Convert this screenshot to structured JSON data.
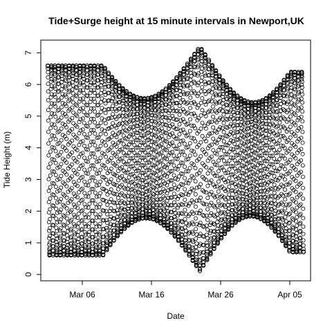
{
  "chart_data": {
    "type": "scatter",
    "title": "Tide+Surge height at 15 minute intervals in Newport,UK",
    "xlabel": "Date",
    "ylabel": "Tide Height (m)",
    "x_start": "2013-03-01",
    "x_end": "2013-04-07",
    "xlim": [
      "2013-02-28",
      "2013-04-08"
    ],
    "ylim": [
      -0.2,
      7.4
    ],
    "x_ticks": [
      {
        "date": "2013-03-06",
        "label": "Mar 06"
      },
      {
        "date": "2013-03-16",
        "label": "Mar 16"
      },
      {
        "date": "2013-03-26",
        "label": "Mar 26"
      },
      {
        "date": "2013-04-05",
        "label": "Apr 05"
      }
    ],
    "y_ticks": [
      0,
      1,
      2,
      3,
      4,
      5,
      6,
      7
    ],
    "marker": "open-circle",
    "grid": false,
    "legend": "none",
    "series_summary": {
      "sampling": "15 minute intervals",
      "high_water_peaks": [
        {
          "date": "2013-03-09",
          "value": 6.6
        },
        {
          "date": "2013-03-23",
          "value": 7.2
        },
        {
          "date": "2013-04-05",
          "value": 6.4
        }
      ],
      "low_water_minima": [
        {
          "date": "2013-03-09",
          "value": 0.6
        },
        {
          "date": "2013-03-23",
          "value": 0.1
        },
        {
          "date": "2013-04-05",
          "value": 0.7
        }
      ]
    }
  }
}
